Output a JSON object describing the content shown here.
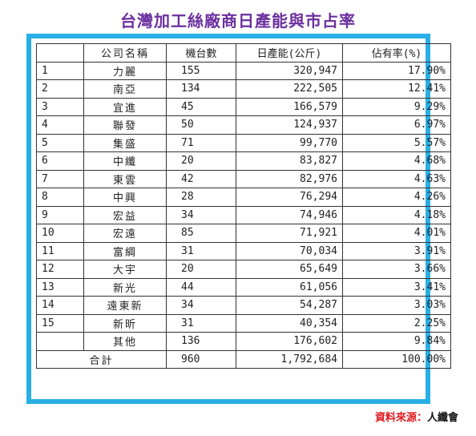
{
  "title": "台灣加工絲廠商日產能與市占率",
  "table": {
    "headers": [
      "",
      "公司名稱",
      "機台數",
      "日產能(公斤)",
      "佔有率(%)"
    ],
    "rows": [
      {
        "idx": "1",
        "name": "力麗",
        "machines": "155",
        "capacity": "320,947",
        "share": "17.90%"
      },
      {
        "idx": "2",
        "name": "南亞",
        "machines": "134",
        "capacity": "222,505",
        "share": "12.41%"
      },
      {
        "idx": "3",
        "name": "宜進",
        "machines": "45",
        "capacity": "166,579",
        "share": "9.29%"
      },
      {
        "idx": "4",
        "name": "聯發",
        "machines": "50",
        "capacity": "124,937",
        "share": "6.97%"
      },
      {
        "idx": "5",
        "name": "集盛",
        "machines": "71",
        "capacity": "99,770",
        "share": "5.57%"
      },
      {
        "idx": "6",
        "name": "中纖",
        "machines": "20",
        "capacity": "83,827",
        "share": "4.68%"
      },
      {
        "idx": "7",
        "name": "東雲",
        "machines": "42",
        "capacity": "82,976",
        "share": "4.63%"
      },
      {
        "idx": "8",
        "name": "中興",
        "machines": "28",
        "capacity": "76,294",
        "share": "4.26%"
      },
      {
        "idx": "9",
        "name": "宏益",
        "machines": "34",
        "capacity": "74,946",
        "share": "4.18%"
      },
      {
        "idx": "10",
        "name": "宏遠",
        "machines": "85",
        "capacity": "71,921",
        "share": "4.01%"
      },
      {
        "idx": "11",
        "name": "富綢",
        "machines": "31",
        "capacity": "70,034",
        "share": "3.91%"
      },
      {
        "idx": "12",
        "name": "大宇",
        "machines": "20",
        "capacity": "65,649",
        "share": "3.66%"
      },
      {
        "idx": "13",
        "name": "新光",
        "machines": "44",
        "capacity": "61,056",
        "share": "3.41%"
      },
      {
        "idx": "14",
        "name": "遠東新",
        "machines": "34",
        "capacity": "54,287",
        "share": "3.03%"
      },
      {
        "idx": "15",
        "name": "新昕",
        "machines": "31",
        "capacity": "40,354",
        "share": "2.25%"
      },
      {
        "idx": "",
        "name": "其他",
        "machines": "136",
        "capacity": "176,602",
        "share": "9.84%"
      }
    ],
    "total": {
      "label": "合計",
      "machines": "960",
      "capacity": "1,792,684",
      "share": "100.00%"
    }
  },
  "source": {
    "label": "資料來源：",
    "name": "人纖會"
  },
  "colors": {
    "title": "#6b2f9e",
    "frame": "#29aee6",
    "source_label": "#e0191f"
  }
}
